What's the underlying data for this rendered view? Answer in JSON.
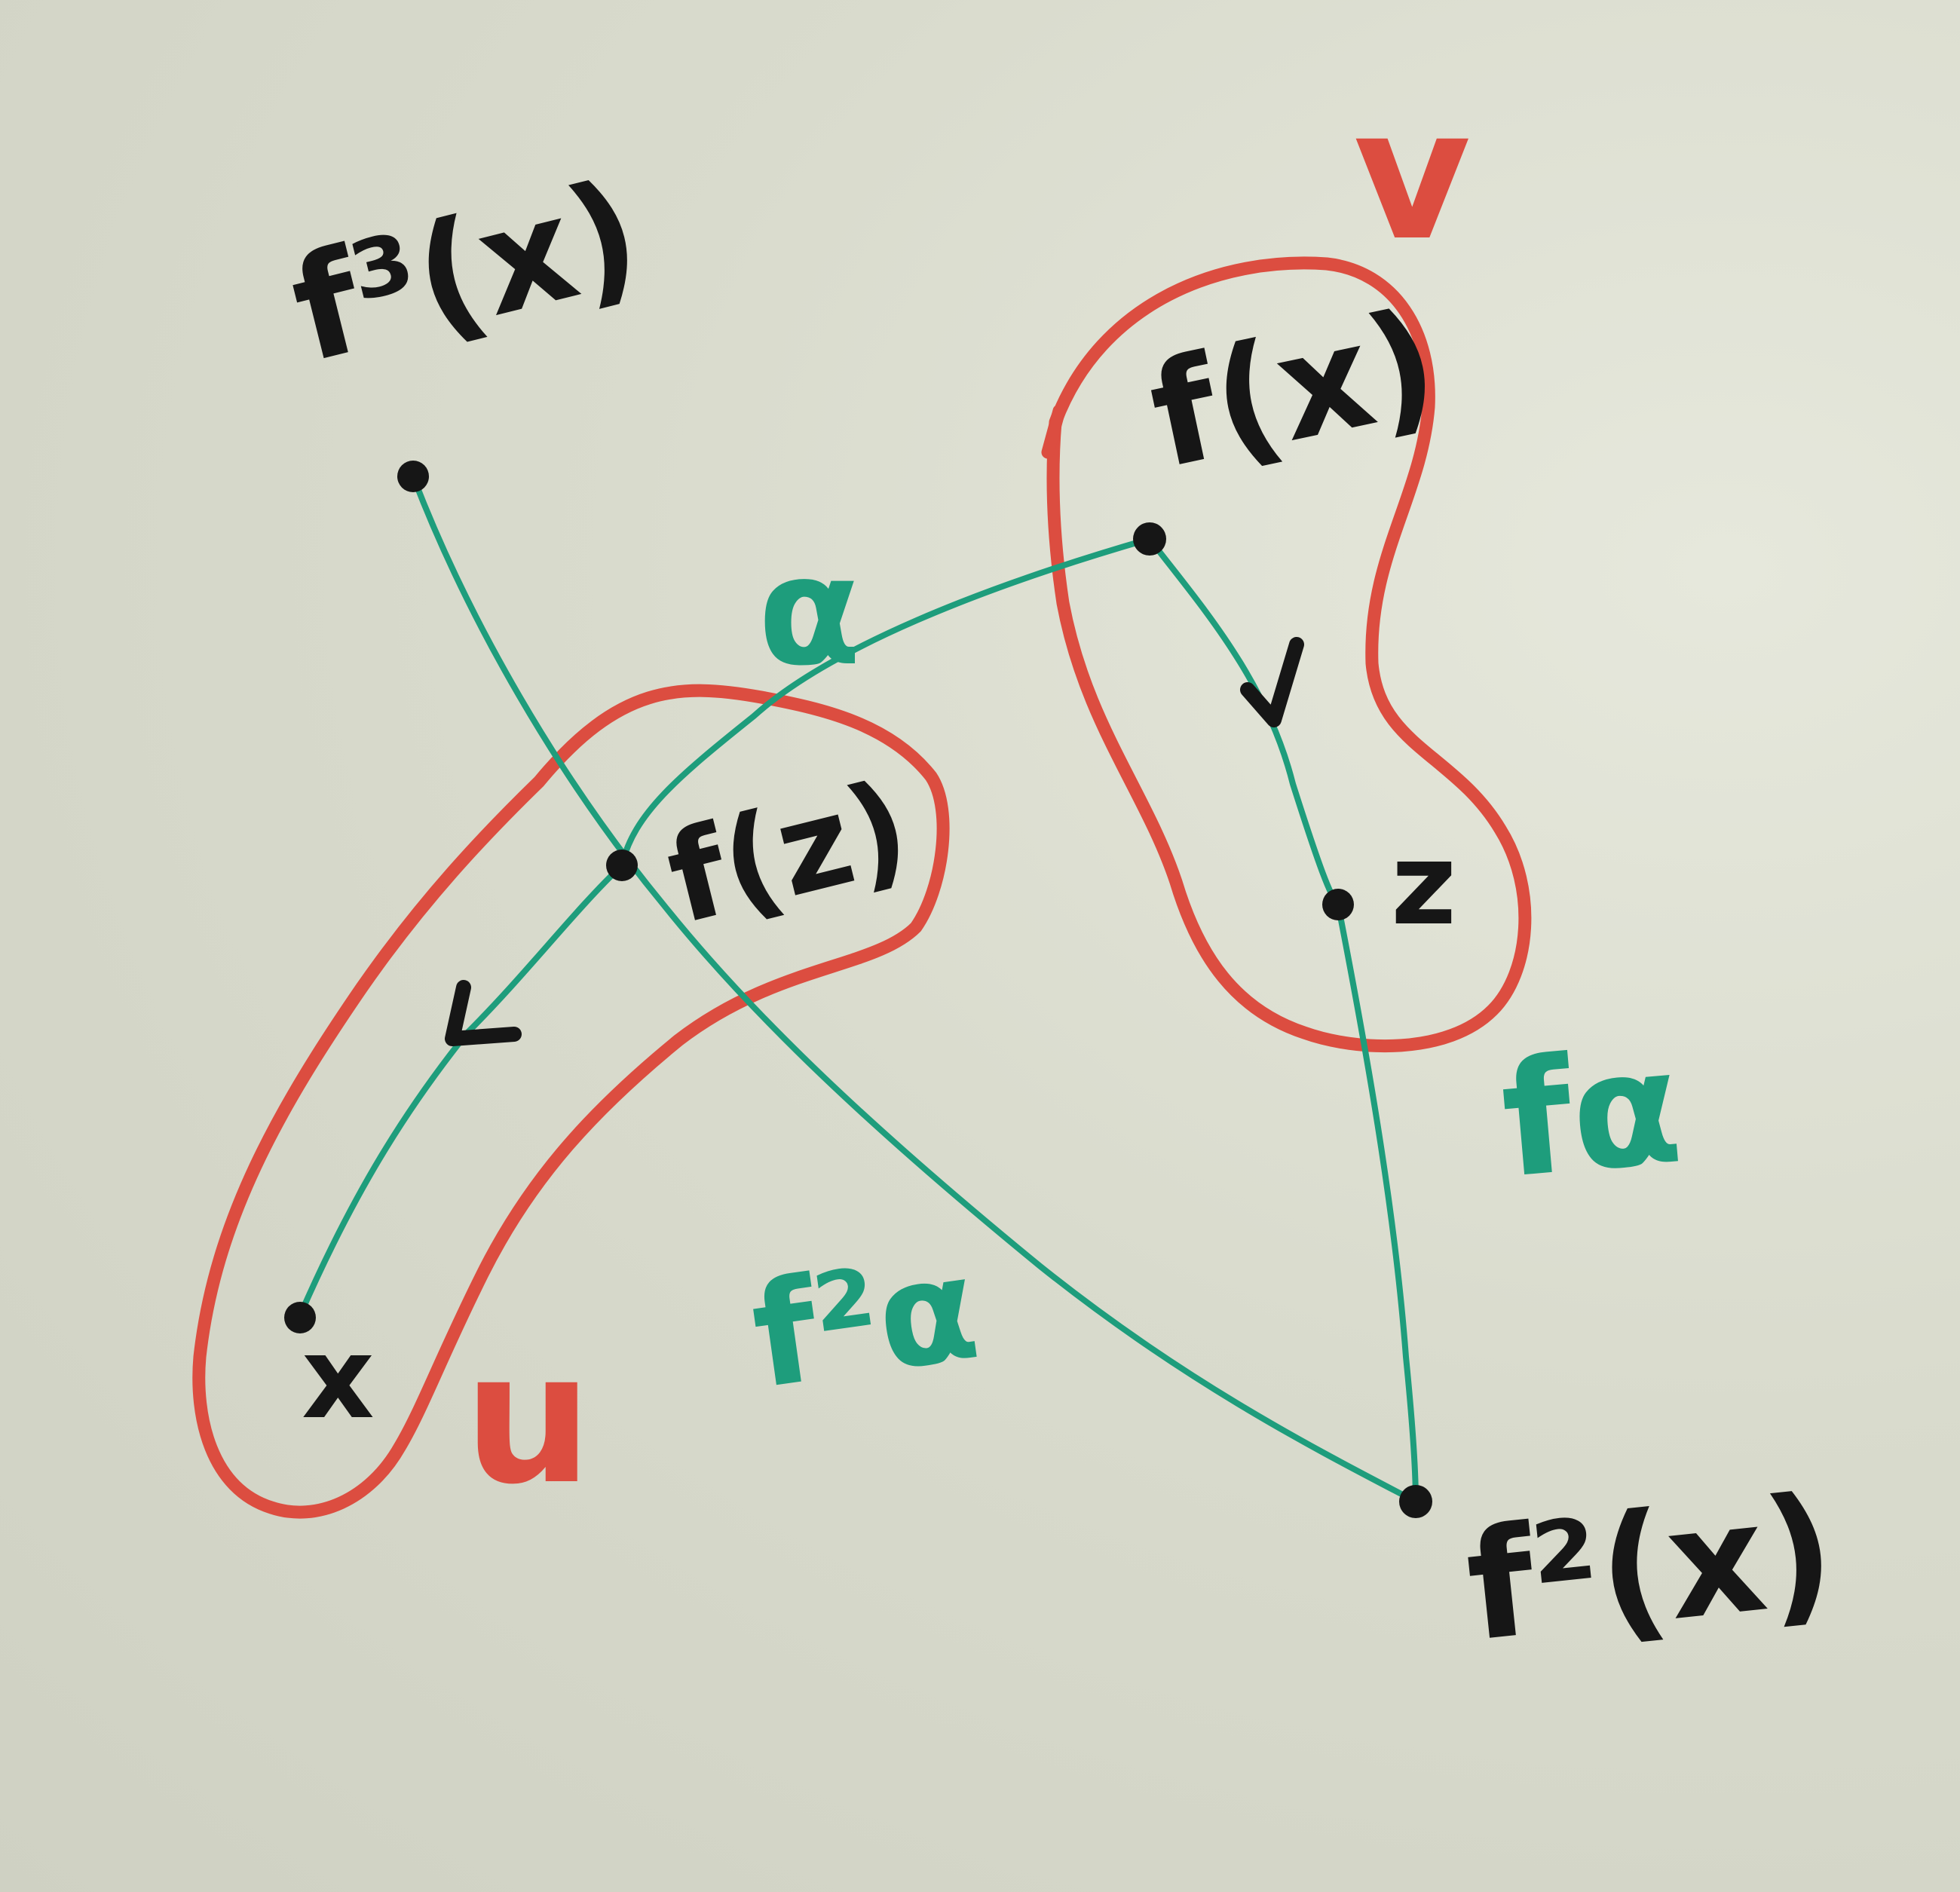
{
  "labels": {
    "f3x": "f³(x)",
    "fx": "f(x)",
    "fz": "f(z)",
    "z": "z",
    "x": "x",
    "f2x": "f²(x)",
    "alpha": "α",
    "f_alpha": "fα",
    "f2_alpha": "f²α",
    "set_u": "u",
    "set_v": "v"
  },
  "colors": {
    "board": "#d9dbcd",
    "red_marker": "#dc4d40",
    "green_marker": "#1e9d7c",
    "black_marker": "#161616"
  }
}
